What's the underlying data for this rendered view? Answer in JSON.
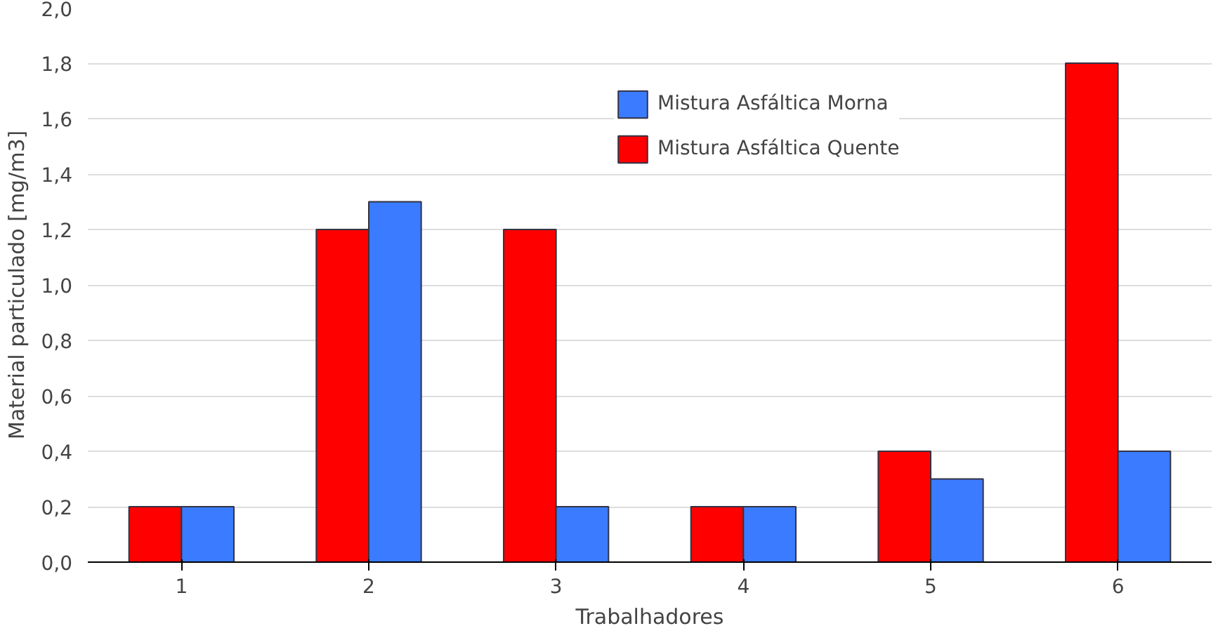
{
  "chart_data": {
    "type": "bar",
    "xlabel": "Trabalhadores",
    "ylabel": "Material particulado [mg/m3]",
    "categories": [
      "1",
      "2",
      "3",
      "4",
      "5",
      "6"
    ],
    "series": [
      {
        "name": "Mistura Asfáltica Quente",
        "color": "#ff0000",
        "values": [
          0.2,
          1.2,
          1.2,
          0.2,
          0.4,
          1.8
        ]
      },
      {
        "name": "Mistura Asfáltica Morna",
        "color": "#3a7bff",
        "values": [
          0.2,
          1.3,
          0.2,
          0.2,
          0.3,
          0.4
        ]
      }
    ],
    "ylim": [
      0,
      2
    ],
    "yticks": [
      {
        "value": 0,
        "label": "0,0"
      },
      {
        "value": 0.2,
        "label": "0,2"
      },
      {
        "value": 0.4,
        "label": "0,4"
      },
      {
        "value": 0.6,
        "label": "0,6"
      },
      {
        "value": 0.8,
        "label": "0,8"
      },
      {
        "value": 1,
        "label": "1,0"
      },
      {
        "value": 1.2,
        "label": "1,2"
      },
      {
        "value": 1.4,
        "label": "1,4"
      },
      {
        "value": 1.6,
        "label": "1,6"
      },
      {
        "value": 1.8,
        "label": "1,8"
      },
      {
        "value": 2,
        "label": "2,0"
      }
    ],
    "grid": "y",
    "legend": "top right"
  }
}
